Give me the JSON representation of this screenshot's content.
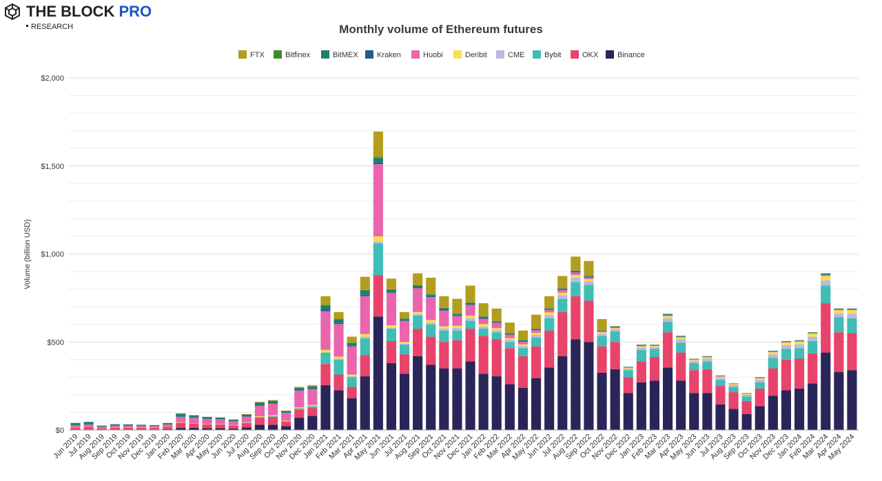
{
  "brand": {
    "name": "THE BLOCK",
    "tier": "PRO",
    "sub": "RESEARCH"
  },
  "chart_data": {
    "type": "stacked-bar",
    "title": "Monthly volume of Ethereum futures",
    "y_label": "Volume (billion USD)",
    "categories": [
      "Jun 2019",
      "Jul 2019",
      "Aug 2019",
      "Sep 2019",
      "Oct 2019",
      "Nov 2019",
      "Dec 2019",
      "Jan 2020",
      "Feb 2020",
      "Mar 2020",
      "Apr 2020",
      "May 2020",
      "Jun 2020",
      "Jul 2020",
      "Aug 2020",
      "Sep 2020",
      "Oct 2020",
      "Nov 2020",
      "Dec 2020",
      "Jan 2021",
      "Feb 2021",
      "Mar 2021",
      "Apr 2021",
      "May 2021",
      "Jun 2021",
      "Jul 2021",
      "Aug 2021",
      "Sep 2021",
      "Oct 2021",
      "Nov 2021",
      "Dec 2021",
      "Jan 2022",
      "Feb 2022",
      "Mar 2022",
      "Apr 2022",
      "May 2022",
      "Jun 2022",
      "Jul 2022",
      "Aug 2022",
      "Sep 2022",
      "Oct 2022",
      "Nov 2022",
      "Dec 2022",
      "Jan 2023",
      "Feb 2023",
      "Mar 2023",
      "Apr 2023",
      "May 2023",
      "Jun 2023",
      "Jul 2023",
      "Aug 2023",
      "Sep 2023",
      "Oct 2023",
      "Nov 2023",
      "Dec 2023",
      "Jan 2024",
      "Feb 2024",
      "Mar 2024",
      "Apr 2024",
      "May 2024"
    ],
    "series": [
      {
        "name": "FTX",
        "color": "#b39d1e",
        "values": [
          0,
          0,
          0,
          0,
          0,
          0,
          0,
          0,
          2,
          2,
          1,
          1,
          1,
          2,
          4,
          4,
          2,
          6,
          8,
          50,
          40,
          34,
          75,
          147,
          61,
          37,
          68,
          93,
          67,
          84,
          95,
          75,
          71,
          59,
          54,
          79,
          68,
          70,
          80,
          84,
          64,
          1,
          0,
          0,
          0,
          0,
          0,
          0,
          0,
          0,
          0,
          0,
          0,
          0,
          0,
          0,
          0,
          0,
          0,
          0
        ]
      },
      {
        "name": "Bitfinex",
        "color": "#3d8b2f",
        "values": [
          0,
          0,
          0,
          0,
          0,
          0,
          0,
          0,
          0,
          0,
          0,
          0,
          0,
          0,
          0,
          0,
          0,
          0,
          0,
          2,
          2,
          1,
          2,
          3,
          2,
          1,
          2,
          2,
          2,
          2,
          2,
          1,
          1,
          1,
          1,
          1,
          1,
          1,
          1,
          1,
          1,
          1,
          1,
          1,
          1,
          1,
          1,
          1,
          1,
          1,
          1,
          1,
          1,
          1,
          1,
          1,
          1,
          1,
          1,
          1
        ]
      },
      {
        "name": "BitMEX",
        "color": "#1b7f6f",
        "values": [
          12,
          13,
          6,
          8,
          8,
          6,
          5,
          7,
          15,
          12,
          10,
          9,
          8,
          10,
          15,
          14,
          8,
          12,
          12,
          25,
          20,
          15,
          25,
          25,
          12,
          8,
          10,
          10,
          8,
          8,
          8,
          8,
          6,
          5,
          5,
          5,
          5,
          6,
          6,
          5,
          3,
          3,
          2,
          3,
          2,
          5,
          3,
          2,
          2,
          2,
          1,
          1,
          2,
          3,
          3,
          3,
          3,
          7,
          4,
          4
        ]
      },
      {
        "name": "Kraken",
        "color": "#1f5d8a",
        "values": [
          2,
          2,
          1,
          1,
          1,
          1,
          1,
          1,
          3,
          2,
          2,
          2,
          1,
          2,
          3,
          3,
          2,
          3,
          3,
          8,
          6,
          5,
          8,
          10,
          5,
          4,
          5,
          5,
          4,
          4,
          5,
          4,
          3,
          3,
          3,
          3,
          3,
          3,
          3,
          3,
          2,
          2,
          1,
          2,
          2,
          2,
          2,
          1,
          1,
          1,
          1,
          1,
          1,
          1,
          1,
          1,
          1,
          2,
          1,
          1
        ]
      },
      {
        "name": "Huobi",
        "color": "#ea65ad",
        "values": [
          10,
          12,
          7,
          10,
          10,
          9,
          8,
          12,
          30,
          30,
          28,
          26,
          22,
          32,
          60,
          65,
          45,
          95,
          90,
          220,
          185,
          160,
          215,
          410,
          185,
          120,
          135,
          130,
          90,
          55,
          60,
          30,
          30,
          20,
          15,
          15,
          15,
          15,
          15,
          10,
          5,
          5,
          3,
          4,
          3,
          5,
          4,
          3,
          3,
          3,
          2,
          2,
          3,
          3,
          3,
          3,
          3,
          5,
          4,
          4
        ]
      },
      {
        "name": "Deribit",
        "color": "#f6e04c",
        "values": [
          1,
          1,
          1,
          1,
          1,
          1,
          1,
          1,
          3,
          2,
          2,
          2,
          2,
          2,
          4,
          5,
          3,
          6,
          7,
          15,
          12,
          10,
          15,
          30,
          15,
          10,
          12,
          15,
          12,
          12,
          15,
          15,
          12,
          10,
          10,
          12,
          15,
          15,
          15,
          12,
          8,
          6,
          5,
          8,
          7,
          12,
          10,
          6,
          8,
          6,
          5,
          5,
          8,
          12,
          15,
          15,
          17,
          25,
          18,
          20
        ]
      },
      {
        "name": "CME",
        "color": "#bcb8de",
        "values": [
          0,
          0,
          0,
          0,
          0,
          0,
          0,
          0,
          0,
          0,
          0,
          0,
          0,
          0,
          0,
          0,
          0,
          0,
          0,
          0,
          5,
          5,
          10,
          10,
          5,
          5,
          8,
          10,
          12,
          15,
          15,
          12,
          12,
          12,
          12,
          15,
          18,
          20,
          25,
          20,
          12,
          12,
          8,
          12,
          10,
          20,
          20,
          12,
          15,
          12,
          10,
          10,
          15,
          20,
          22,
          22,
          25,
          30,
          22,
          25
        ]
      },
      {
        "name": "Bybit",
        "color": "#3fbdb6",
        "values": [
          0,
          0,
          0,
          0,
          0,
          0,
          0,
          0,
          0,
          0,
          0,
          0,
          0,
          2,
          4,
          4,
          3,
          8,
          10,
          65,
          85,
          55,
          95,
          180,
          70,
          55,
          75,
          70,
          65,
          55,
          45,
          40,
          40,
          35,
          45,
          50,
          70,
          75,
          80,
          90,
          60,
          60,
          40,
          65,
          45,
          60,
          55,
          40,
          45,
          35,
          30,
          25,
          35,
          60,
          60,
          60,
          70,
          100,
          85,
          85
        ]
      },
      {
        "name": "OKX",
        "color": "#e8436b",
        "values": [
          15,
          18,
          10,
          13,
          12,
          11,
          10,
          14,
          30,
          25,
          22,
          22,
          18,
          25,
          40,
          45,
          25,
          45,
          45,
          120,
          90,
          65,
          120,
          235,
          125,
          110,
          155,
          160,
          150,
          160,
          185,
          215,
          210,
          205,
          180,
          180,
          210,
          250,
          245,
          235,
          150,
          155,
          90,
          120,
          135,
          200,
          160,
          130,
          135,
          105,
          95,
          75,
          100,
          155,
          175,
          170,
          170,
          280,
          225,
          210
        ]
      },
      {
        "name": "Binance",
        "color": "#2a2559",
        "values": [
          0,
          0,
          0,
          0,
          0,
          2,
          3,
          5,
          12,
          12,
          10,
          10,
          8,
          15,
          30,
          30,
          22,
          70,
          80,
          255,
          225,
          180,
          305,
          645,
          380,
          320,
          420,
          370,
          350,
          350,
          390,
          320,
          305,
          260,
          240,
          295,
          355,
          420,
          515,
          500,
          325,
          345,
          210,
          270,
          280,
          355,
          280,
          210,
          210,
          145,
          120,
          90,
          135,
          195,
          225,
          235,
          265,
          440,
          330,
          340
        ]
      }
    ],
    "ylim": [
      0,
      2000
    ],
    "yticks": [
      {
        "value": 0,
        "label": "$0"
      },
      {
        "value": 500,
        "label": "$500"
      },
      {
        "value": 1000,
        "label": "$1,000"
      },
      {
        "value": 1500,
        "label": "$1,500"
      },
      {
        "value": 2000,
        "label": "$2,000"
      }
    ],
    "y_minor_grid": [
      100,
      200,
      300,
      400,
      600,
      700,
      800,
      900,
      1100,
      1200,
      1300,
      1400,
      1600,
      1700,
      1800,
      1900
    ],
    "grid": true,
    "legend": "top"
  }
}
